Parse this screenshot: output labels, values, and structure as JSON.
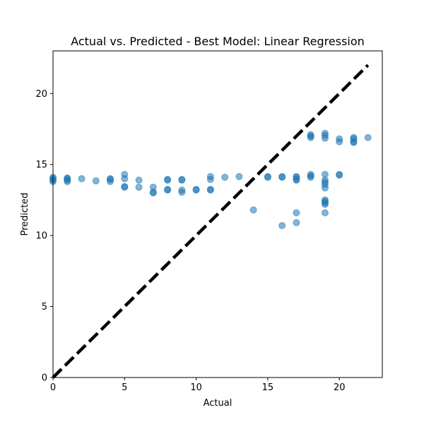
{
  "chart_data": {
    "type": "scatter",
    "title": "Actual vs. Predicted - Best Model: Linear Regression",
    "xlabel": "Actual",
    "ylabel": "Predicted",
    "xlim": [
      0,
      23
    ],
    "ylim": [
      0,
      23
    ],
    "x_ticks": [
      0,
      5,
      10,
      15,
      20
    ],
    "y_ticks": [
      0,
      5,
      10,
      15,
      20
    ],
    "grid": false,
    "legend": "none",
    "colors": {
      "points": "#1f77b4",
      "reference_line": "#000000"
    },
    "reference_line": {
      "style": "dashed",
      "x": [
        0,
        22
      ],
      "y": [
        0,
        22
      ]
    },
    "points": [
      [
        0,
        14.0
      ],
      [
        0,
        13.9
      ],
      [
        0,
        13.8
      ],
      [
        0,
        14.1
      ],
      [
        1,
        14.0
      ],
      [
        1,
        13.9
      ],
      [
        1,
        13.8
      ],
      [
        1,
        14.05
      ],
      [
        2,
        14.0
      ],
      [
        3,
        13.85
      ],
      [
        4,
        14.0
      ],
      [
        4,
        13.8
      ],
      [
        4,
        13.95
      ],
      [
        5,
        14.3
      ],
      [
        5,
        14.0
      ],
      [
        5,
        13.4
      ],
      [
        5,
        13.45
      ],
      [
        6,
        13.9
      ],
      [
        6,
        13.4
      ],
      [
        7,
        13.4
      ],
      [
        7,
        13.05
      ],
      [
        7,
        13.0
      ],
      [
        8,
        13.95
      ],
      [
        8,
        13.9
      ],
      [
        8,
        13.2
      ],
      [
        8,
        13.25
      ],
      [
        9,
        13.95
      ],
      [
        9,
        13.9
      ],
      [
        9,
        13.2
      ],
      [
        9,
        13.05
      ],
      [
        10,
        13.2
      ],
      [
        10,
        13.25
      ],
      [
        11,
        14.15
      ],
      [
        11,
        13.95
      ],
      [
        11,
        13.2
      ],
      [
        11,
        13.25
      ],
      [
        12,
        14.1
      ],
      [
        13,
        14.15
      ],
      [
        14,
        11.8
      ],
      [
        15,
        14.1
      ],
      [
        15,
        14.15
      ],
      [
        16,
        14.1
      ],
      [
        16,
        14.15
      ],
      [
        16,
        10.7
      ],
      [
        17,
        14.1
      ],
      [
        17,
        13.95
      ],
      [
        17,
        13.9
      ],
      [
        17,
        14.15
      ],
      [
        17,
        11.6
      ],
      [
        17,
        10.9
      ],
      [
        18,
        17.1
      ],
      [
        18,
        16.9
      ],
      [
        18,
        17.0
      ],
      [
        18,
        14.3
      ],
      [
        18,
        14.1
      ],
      [
        18,
        14.2
      ],
      [
        19,
        17.2
      ],
      [
        19,
        17.05
      ],
      [
        19,
        16.85
      ],
      [
        19,
        14.3
      ],
      [
        19,
        13.9
      ],
      [
        19,
        13.75
      ],
      [
        19,
        13.6
      ],
      [
        19,
        13.35
      ],
      [
        19,
        12.5
      ],
      [
        19,
        12.4
      ],
      [
        19,
        12.3
      ],
      [
        19,
        12.2
      ],
      [
        19,
        11.6
      ],
      [
        20,
        16.8
      ],
      [
        20,
        16.6
      ],
      [
        20,
        14.3
      ],
      [
        20,
        14.25
      ],
      [
        21,
        16.9
      ],
      [
        21,
        16.8
      ],
      [
        21,
        16.6
      ],
      [
        21,
        16.55
      ],
      [
        22,
        16.9
      ]
    ]
  }
}
